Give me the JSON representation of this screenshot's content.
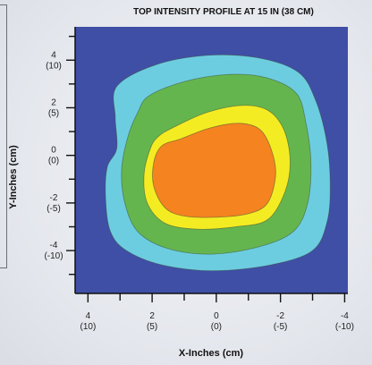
{
  "chart_data": {
    "type": "heatmap",
    "title": "TOP INTENSITY PROFILE AT 15 IN (38 CM)",
    "xlabel": "X-Inches (cm)",
    "ylabel": "Y-Inches (cm)",
    "x_ticks": [
      {
        "value": 4,
        "label": "4",
        "sublabel": "(10)"
      },
      {
        "value": 2,
        "label": "2",
        "sublabel": "(5)"
      },
      {
        "value": 0,
        "label": "0",
        "sublabel": "(0)"
      },
      {
        "value": -2,
        "label": "-2",
        "sublabel": "(-5)"
      },
      {
        "value": -4,
        "label": "-4",
        "sublabel": "(-10)"
      }
    ],
    "y_ticks": [
      {
        "value": 4,
        "label": "4",
        "sublabel": "(10)"
      },
      {
        "value": 2,
        "label": "2",
        "sublabel": "(5)"
      },
      {
        "value": 0,
        "label": "0",
        "sublabel": "(0)"
      },
      {
        "value": -2,
        "label": "-2",
        "sublabel": "(-5)"
      },
      {
        "value": -4,
        "label": "-4",
        "sublabel": "(-10)"
      }
    ],
    "xlim": [
      4.4,
      -4.1
    ],
    "ylim": [
      -5.8,
      5.4
    ],
    "x_reversed": true,
    "grid": false,
    "legend": "none",
    "background_color": "#3f4fa6",
    "contours": [
      {
        "color": "#6dcde0",
        "points": [
          [
            3.1,
            2.9
          ],
          [
            1.9,
            3.8
          ],
          [
            0.3,
            4.2
          ],
          [
            -1.3,
            4.1
          ],
          [
            -2.55,
            3.5
          ],
          [
            -3.1,
            2.3
          ],
          [
            -3.45,
            0.5
          ],
          [
            -3.55,
            -1.3
          ],
          [
            -3.45,
            -2.8
          ],
          [
            -3.0,
            -4.0
          ],
          [
            -1.7,
            -4.6
          ],
          [
            0.1,
            -4.85
          ],
          [
            1.7,
            -4.6
          ],
          [
            2.8,
            -4.0
          ],
          [
            3.3,
            -3.2
          ],
          [
            3.45,
            -1.8
          ],
          [
            3.4,
            -0.5
          ],
          [
            3.1,
            0.3
          ],
          [
            3.15,
            1.6
          ]
        ]
      },
      {
        "color": "#65b54e",
        "points": [
          [
            2.1,
            2.5
          ],
          [
            1.0,
            3.1
          ],
          [
            -0.4,
            3.4
          ],
          [
            -1.6,
            3.25
          ],
          [
            -2.5,
            2.6
          ],
          [
            -2.8,
            1.3
          ],
          [
            -2.95,
            -0.3
          ],
          [
            -2.85,
            -2.0
          ],
          [
            -2.4,
            -3.2
          ],
          [
            -1.3,
            -3.85
          ],
          [
            0.2,
            -4.15
          ],
          [
            1.55,
            -3.9
          ],
          [
            2.45,
            -3.2
          ],
          [
            2.85,
            -2.0
          ],
          [
            2.95,
            -0.6
          ],
          [
            2.75,
            0.8
          ],
          [
            2.45,
            1.8
          ]
        ]
      },
      {
        "color": "#f4ec22",
        "points": [
          [
            1.3,
            1.2
          ],
          [
            0.3,
            1.8
          ],
          [
            -0.8,
            2.1
          ],
          [
            -1.6,
            1.9
          ],
          [
            -2.1,
            1.1
          ],
          [
            -2.3,
            -0.2
          ],
          [
            -2.15,
            -1.5
          ],
          [
            -1.6,
            -2.7
          ],
          [
            -0.6,
            -3.0
          ],
          [
            0.6,
            -3.1
          ],
          [
            1.6,
            -2.85
          ],
          [
            2.15,
            -2.0
          ],
          [
            2.25,
            -0.8
          ],
          [
            2.05,
            0.3
          ],
          [
            1.8,
            0.8
          ]
        ]
      },
      {
        "color": "#f5831f",
        "points": [
          [
            1.1,
            0.7
          ],
          [
            0.2,
            1.15
          ],
          [
            -0.7,
            1.35
          ],
          [
            -1.35,
            1.1
          ],
          [
            -1.7,
            0.3
          ],
          [
            -1.85,
            -0.8
          ],
          [
            -1.6,
            -2.0
          ],
          [
            -1.0,
            -2.45
          ],
          [
            0.0,
            -2.6
          ],
          [
            1.0,
            -2.55
          ],
          [
            1.6,
            -2.2
          ],
          [
            1.95,
            -1.3
          ],
          [
            1.95,
            -0.3
          ],
          [
            1.7,
            0.4
          ]
        ]
      }
    ]
  }
}
